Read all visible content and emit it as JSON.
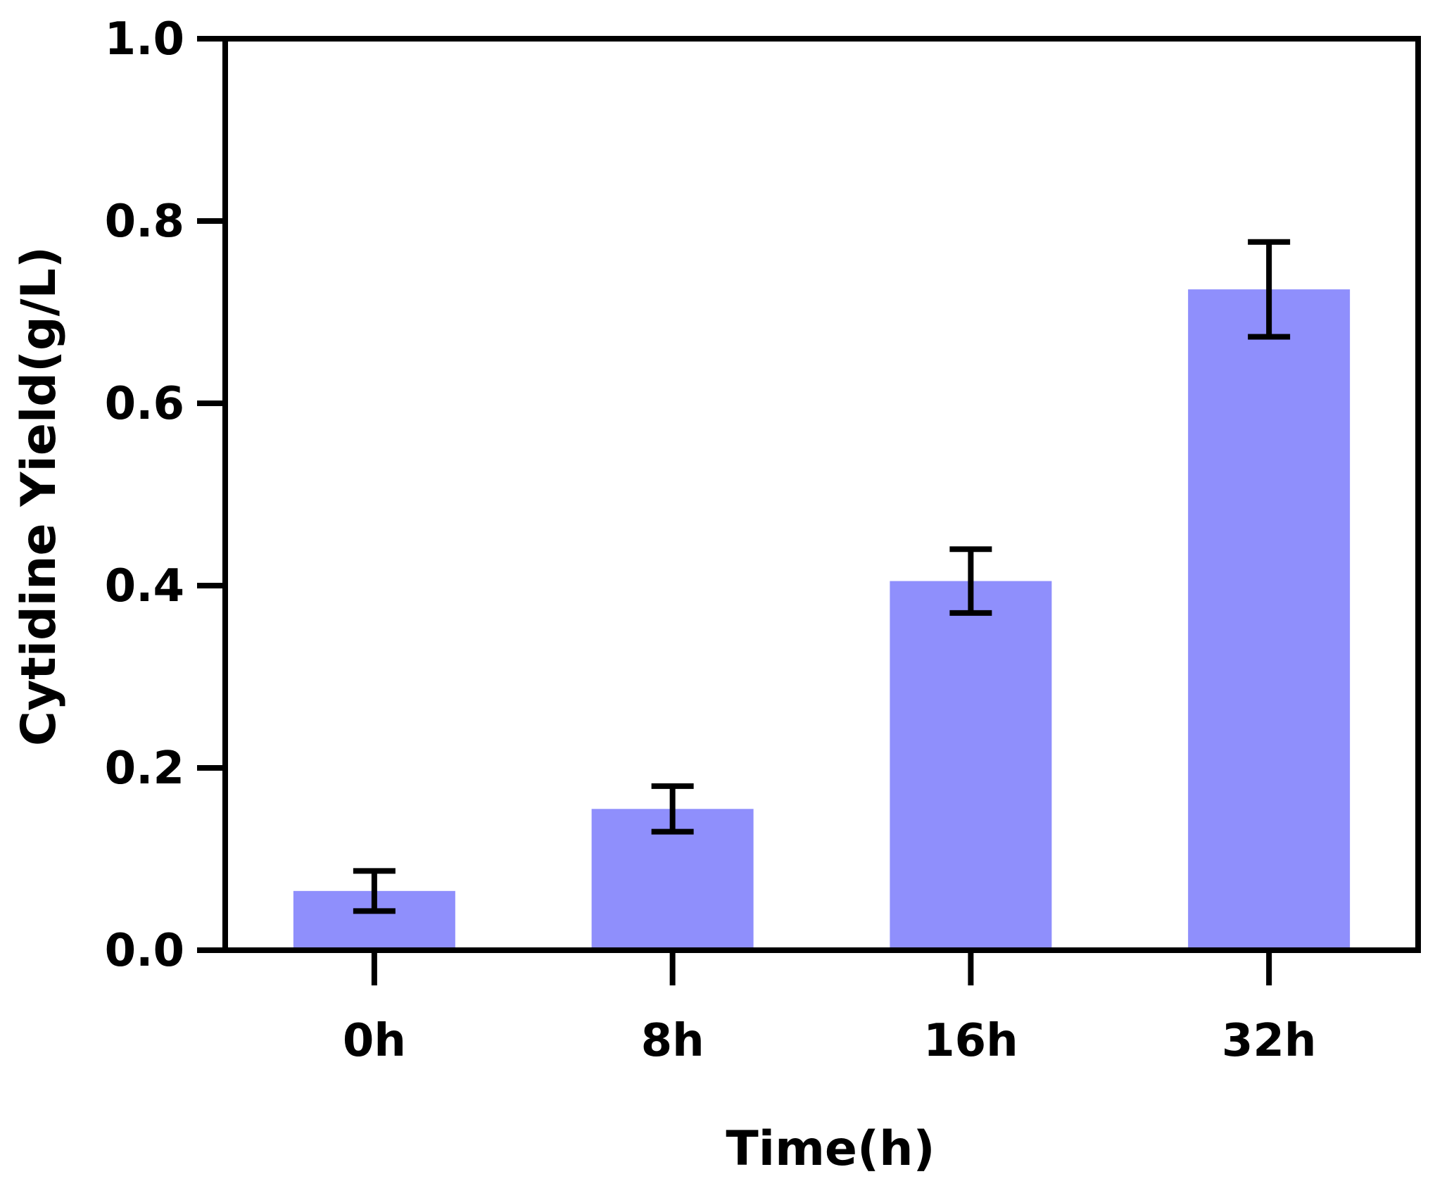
{
  "chart_data": {
    "type": "bar",
    "title": "",
    "xlabel": "Time(h)",
    "ylabel": "Cytidine Yield(g/L)",
    "categories": [
      "0h",
      "8h",
      "16h",
      "32h"
    ],
    "values": [
      0.065,
      0.155,
      0.405,
      0.725
    ],
    "errors": [
      0.022,
      0.025,
      0.035,
      0.052
    ],
    "ylim": [
      0,
      1.0
    ],
    "yticks": [
      0.0,
      0.2,
      0.4,
      0.6,
      0.8,
      1.0
    ],
    "ytick_labels": [
      "0.0",
      "0.2",
      "0.4",
      "0.6",
      "0.8",
      "1.0"
    ],
    "grid": false,
    "legend": "none",
    "bar_color": "#8f8ffc",
    "axis_color": "#000000"
  }
}
